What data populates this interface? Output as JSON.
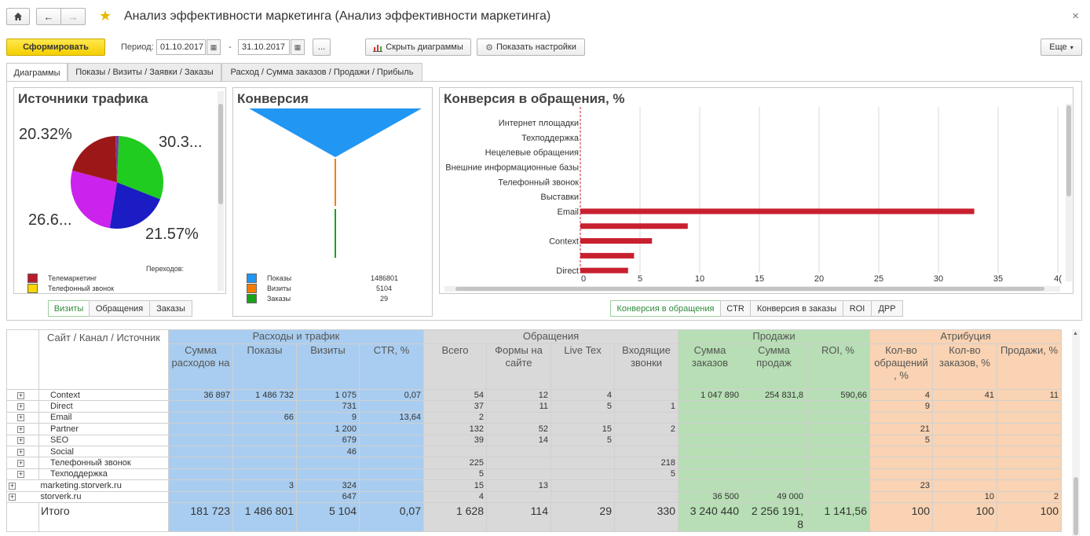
{
  "window": {
    "title": "Анализ эффективности маркетинга (Анализ эффективности маркетинга)",
    "close_glyph": "×"
  },
  "toolbar": {
    "generate_label": "Сформировать",
    "period_label": "Период:",
    "date_from": "01.10.2017",
    "date_sep": "-",
    "date_to": "31.10.2017",
    "ellipsis_label": "...",
    "hide_charts_label": "Скрыть диаграммы",
    "show_settings_label": "Показать настройки",
    "more_label": "Еще"
  },
  "tabs": [
    "Диаграммы",
    "Показы / Визиты / Заявки / Заказы",
    "Расход / Сумма заказов / Продажи / Прибыль"
  ],
  "traffic": {
    "title": "Источники трафика",
    "labels": [
      "20.32%",
      "30.3...",
      "26.6...",
      "21.57%"
    ],
    "slices": [
      {
        "value": 30.3,
        "color": "#1fcc1f"
      },
      {
        "value": 21.57,
        "color": "#1c1cc4"
      },
      {
        "value": 26.6,
        "color": "#cc22ee"
      },
      {
        "value": 20.32,
        "color": "#9c1818"
      },
      {
        "value": 1.21,
        "color": "#7a3a9c"
      }
    ],
    "legend_header": "Переходов:",
    "legend": [
      {
        "label": "Телемаркетинг",
        "color": "#b71c2c"
      },
      {
        "label": "Телефонный звонок",
        "color": "#ffd600"
      }
    ],
    "switch": [
      "Визиты",
      "Обращения",
      "Заказы"
    ]
  },
  "conversion": {
    "title": "Конверсия",
    "legend": [
      {
        "label": "Показы",
        "value": "1486801",
        "color": "#2196f3"
      },
      {
        "label": "Визиты",
        "value": "5104",
        "color": "#f57c00"
      },
      {
        "label": "Заказы",
        "value": "29",
        "color": "#1aa31a"
      }
    ]
  },
  "chart_data": {
    "type": "bar",
    "title": "Конверсия в обращения, %",
    "categories": [
      "Интернет площадки",
      "Техподдержка",
      "Нецелевые обращения",
      "Внешние информационные базы",
      "Телефонный звонок",
      "Выставки",
      "Email",
      "",
      "Context",
      "",
      "Direct"
    ],
    "values": [
      0,
      0,
      0,
      0,
      0,
      0,
      33,
      9,
      6,
      4.5,
      4
    ],
    "xticks": [
      "0",
      "5",
      "10",
      "15",
      "20",
      "25",
      "30",
      "35",
      "4("
    ],
    "xlim": [
      0,
      40
    ],
    "grid": true,
    "bar_color": "#c8202f",
    "switch": [
      "Конверсия в обращения",
      "CTR",
      "Конверсия в заказы",
      "ROI",
      "ДРР"
    ]
  },
  "table": {
    "groups": [
      {
        "label": "Расходы и трафик",
        "span": 4,
        "cls": "blue"
      },
      {
        "label": "Обращения",
        "span": 4,
        "cls": "gray"
      },
      {
        "label": "Продажи",
        "span": 3,
        "cls": "green"
      },
      {
        "label": "Атрибуция",
        "span": 3,
        "cls": "orange"
      }
    ],
    "name_header": "Сайт / Канал / Источник",
    "columns": [
      "Сумма расходов на",
      "Показы",
      "Визиты",
      "CTR, %",
      "Всего",
      "Формы на сайте",
      "Live Tex",
      "Входящие звонки",
      "Сумма заказов",
      "Сумма продаж",
      "ROI, %",
      "Кол-во обращений , %",
      "Кол-во заказов, %",
      "Продажи, %"
    ],
    "rows": [
      {
        "name": "Context",
        "level": 1,
        "cells": [
          "36 897",
          "1 486 732",
          "1 075",
          "0,07",
          "54",
          "12",
          "4",
          "",
          "1 047 890",
          "254 831,8",
          "590,66",
          "4",
          "41",
          "11"
        ]
      },
      {
        "name": "Direct",
        "level": 1,
        "cells": [
          "",
          "",
          "731",
          "",
          "37",
          "11",
          "5",
          "1",
          "",
          "",
          "",
          "9",
          "",
          ""
        ]
      },
      {
        "name": "Email",
        "level": 1,
        "cells": [
          "",
          "66",
          "9",
          "13,64",
          "2",
          "",
          "",
          "",
          "",
          "",
          "",
          "",
          "",
          ""
        ]
      },
      {
        "name": "Partner",
        "level": 1,
        "cells": [
          "",
          "",
          "1 200",
          "",
          "132",
          "52",
          "15",
          "2",
          "",
          "",
          "",
          "21",
          "",
          ""
        ]
      },
      {
        "name": "SEO",
        "level": 1,
        "cells": [
          "",
          "",
          "679",
          "",
          "39",
          "14",
          "5",
          "",
          "",
          "",
          "",
          "5",
          "",
          ""
        ]
      },
      {
        "name": "Social",
        "level": 1,
        "cells": [
          "",
          "",
          "46",
          "",
          "",
          "",
          "",
          "",
          "",
          "",
          "",
          "",
          "",
          ""
        ]
      },
      {
        "name": "Телефонный звонок",
        "level": 1,
        "cells": [
          "",
          "",
          "",
          "",
          "225",
          "",
          "",
          "218",
          "",
          "",
          "",
          "",
          "",
          ""
        ]
      },
      {
        "name": "Техподдержка",
        "level": 1,
        "cells": [
          "",
          "",
          "",
          "",
          "5",
          "",
          "",
          "5",
          "",
          "",
          "",
          "",
          "",
          ""
        ]
      },
      {
        "name": "marketing.storverk.ru",
        "level": 0,
        "cells": [
          "",
          "3",
          "324",
          "",
          "15",
          "13",
          "",
          "",
          "",
          "",
          "",
          "23",
          "",
          ""
        ]
      },
      {
        "name": "storverk.ru",
        "level": 0,
        "cells": [
          "",
          "",
          "647",
          "",
          "4",
          "",
          "",
          "",
          "36 500",
          "49 000",
          "",
          "",
          "10",
          "2"
        ]
      }
    ],
    "total": {
      "name": "Итого",
      "cells": [
        "181 723",
        "1 486 801",
        "5 104",
        "0,07",
        "1 628",
        "114",
        "29",
        "330",
        "3 240 440",
        "2 256 191, 8",
        "1 141,56",
        "100",
        "100",
        "100"
      ]
    }
  }
}
